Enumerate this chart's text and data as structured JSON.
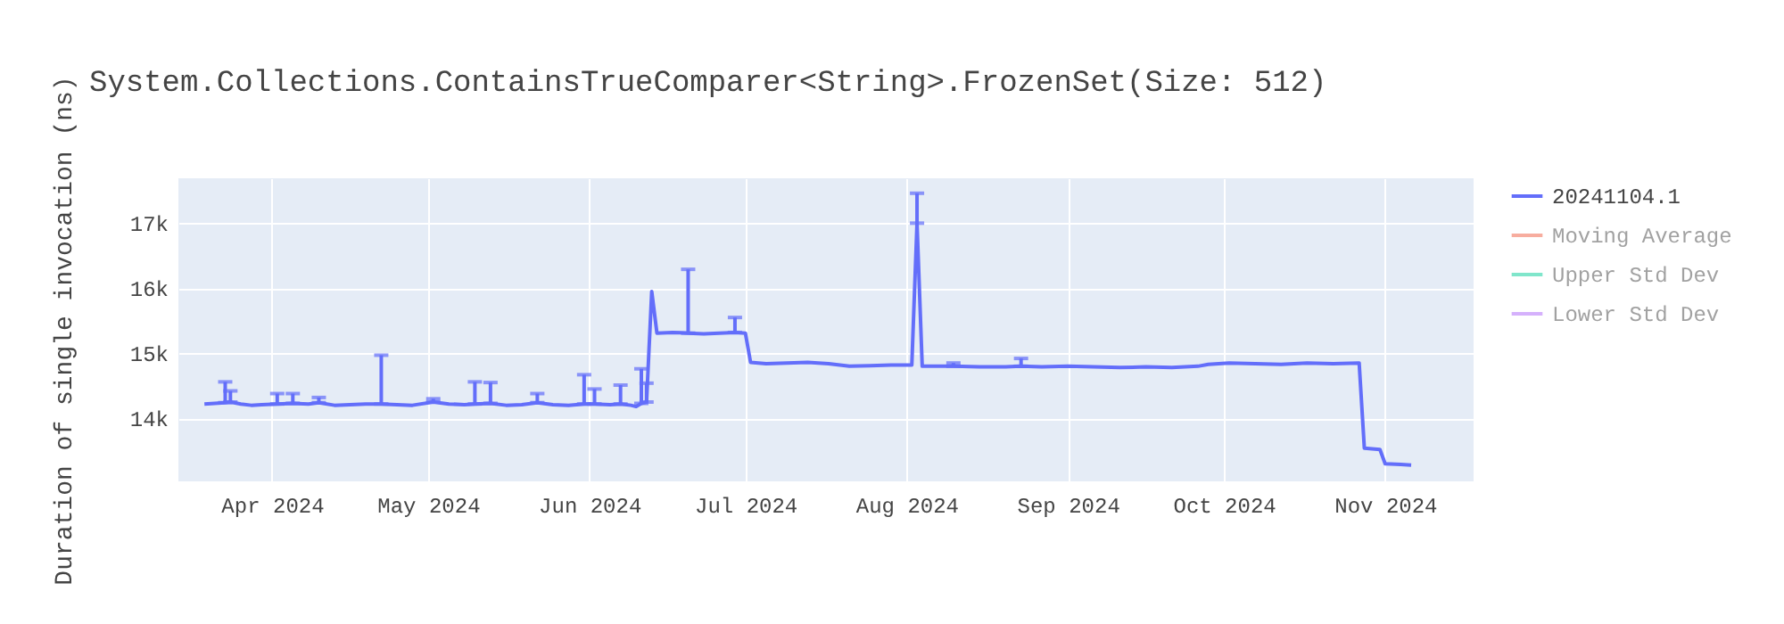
{
  "chart_data": {
    "type": "line",
    "title": "System.Collections.ContainsTrueComparer<String>.FrozenSet(Size: 512)",
    "ylabel": "Duration of single invocation (ns)",
    "x": [
      "2024-03-19",
      "2024-03-21",
      "2024-03-23",
      "2024-03-24",
      "2024-03-26",
      "2024-03-28",
      "2024-03-30",
      "2024-04-02",
      "2024-04-05",
      "2024-04-08",
      "2024-04-10",
      "2024-04-13",
      "2024-04-16",
      "2024-04-19",
      "2024-04-22",
      "2024-04-25",
      "2024-04-28",
      "2024-05-02",
      "2024-05-05",
      "2024-05-08",
      "2024-05-10",
      "2024-05-13",
      "2024-05-16",
      "2024-05-19",
      "2024-05-22",
      "2024-05-25",
      "2024-05-28",
      "2024-05-31",
      "2024-06-02",
      "2024-06-05",
      "2024-06-07",
      "2024-06-09",
      "2024-06-10",
      "2024-06-11",
      "2024-06-12",
      "2024-06-13",
      "2024-06-14",
      "2024-06-17",
      "2024-06-20",
      "2024-06-23",
      "2024-06-26",
      "2024-06-29",
      "2024-07-01",
      "2024-07-02",
      "2024-07-05",
      "2024-07-09",
      "2024-07-13",
      "2024-07-17",
      "2024-07-21",
      "2024-07-25",
      "2024-07-29",
      "2024-08-02",
      "2024-08-03",
      "2024-08-04",
      "2024-08-10",
      "2024-08-15",
      "2024-08-20",
      "2024-08-23",
      "2024-08-27",
      "2024-09-01",
      "2024-09-06",
      "2024-09-11",
      "2024-09-16",
      "2024-09-21",
      "2024-09-26",
      "2024-09-28",
      "2024-10-02",
      "2024-10-07",
      "2024-10-12",
      "2024-10-17",
      "2024-10-22",
      "2024-10-27",
      "2024-10-28",
      "2024-10-31",
      "2024-11-01",
      "2024-11-04",
      "2024-11-06"
    ],
    "series": [
      {
        "name": "20241104.1",
        "color": "#636efa",
        "values": [
          14220,
          14230,
          14240,
          14250,
          14220,
          14200,
          14210,
          14220,
          14230,
          14220,
          14240,
          14200,
          14210,
          14220,
          14220,
          14210,
          14200,
          14250,
          14220,
          14210,
          14220,
          14230,
          14200,
          14210,
          14240,
          14210,
          14200,
          14220,
          14220,
          14210,
          14220,
          14200,
          14180,
          14230,
          14250,
          15950,
          15310,
          15320,
          15310,
          15300,
          15310,
          15320,
          15310,
          14860,
          14840,
          14850,
          14860,
          14840,
          14800,
          14810,
          14820,
          14820,
          17000,
          14800,
          14800,
          14790,
          14790,
          14800,
          14790,
          14800,
          14790,
          14780,
          14790,
          14780,
          14800,
          14830,
          14850,
          14840,
          14830,
          14850,
          14840,
          14850,
          13540,
          13520,
          13300,
          13290,
          13280
        ],
        "errors": [
          null,
          null,
          [
            14240,
            14560
          ],
          [
            14250,
            14420
          ],
          null,
          null,
          null,
          [
            14220,
            14380
          ],
          [
            14230,
            14380
          ],
          null,
          [
            14240,
            14320
          ],
          null,
          null,
          null,
          [
            14220,
            14970
          ],
          null,
          null,
          [
            14250,
            14300
          ],
          null,
          null,
          [
            14220,
            14560
          ],
          [
            14230,
            14550
          ],
          null,
          null,
          [
            14240,
            14380
          ],
          null,
          null,
          [
            14220,
            14670
          ],
          [
            14220,
            14450
          ],
          null,
          [
            14220,
            14510
          ],
          null,
          null,
          [
            14230,
            14760
          ],
          [
            14250,
            14540
          ],
          null,
          null,
          null,
          [
            15310,
            16290
          ],
          null,
          null,
          [
            15320,
            15550
          ],
          null,
          null,
          null,
          null,
          null,
          null,
          null,
          null,
          null,
          null,
          [
            17000,
            17460
          ],
          null,
          [
            14800,
            14850
          ],
          null,
          null,
          [
            14800,
            14920
          ],
          null,
          null,
          null,
          null,
          null,
          null,
          null,
          null,
          null,
          null,
          null,
          null,
          null,
          null,
          null,
          null,
          null,
          null,
          null
        ]
      },
      {
        "name": "Moving Average",
        "color": "#f7ad9f",
        "values": [
          null,
          null,
          null,
          null,
          null,
          null,
          null,
          null,
          null,
          null,
          null,
          null,
          null,
          null,
          null,
          null,
          null,
          null,
          null,
          null,
          null,
          null,
          null,
          null,
          null,
          null,
          null,
          null,
          null,
          null,
          null,
          null,
          null,
          null,
          null,
          null,
          null,
          null,
          null,
          null,
          null,
          null,
          null,
          null,
          null,
          null,
          null,
          null,
          null,
          null,
          null,
          null,
          null,
          null,
          null,
          null,
          null,
          null,
          null,
          null,
          null,
          null,
          null,
          null,
          null,
          null,
          null,
          null,
          null,
          null,
          null,
          null,
          null,
          null,
          null,
          null,
          null
        ]
      },
      {
        "name": "Upper Std Dev",
        "color": "#80e6cb",
        "values": [
          null,
          null,
          null,
          null,
          null,
          null,
          null,
          null,
          null,
          null,
          null,
          null,
          null,
          null,
          null,
          null,
          null,
          null,
          null,
          null,
          null,
          null,
          null,
          null,
          null,
          null,
          null,
          null,
          null,
          null,
          null,
          null,
          null,
          null,
          null,
          null,
          null,
          null,
          null,
          null,
          null,
          null,
          null,
          null,
          null,
          null,
          null,
          null,
          null,
          null,
          null,
          null,
          null,
          null,
          null,
          null,
          null,
          null,
          null,
          null,
          null,
          null,
          null,
          null,
          null,
          null,
          null,
          null,
          null,
          null,
          null,
          null,
          null,
          null,
          null,
          null,
          null
        ]
      },
      {
        "name": "Lower Std Dev",
        "color": "#d5b1fc",
        "values": [
          null,
          null,
          null,
          null,
          null,
          null,
          null,
          null,
          null,
          null,
          null,
          null,
          null,
          null,
          null,
          null,
          null,
          null,
          null,
          null,
          null,
          null,
          null,
          null,
          null,
          null,
          null,
          null,
          null,
          null,
          null,
          null,
          null,
          null,
          null,
          null,
          null,
          null,
          null,
          null,
          null,
          null,
          null,
          null,
          null,
          null,
          null,
          null,
          null,
          null,
          null,
          null,
          null,
          null,
          null,
          null,
          null,
          null,
          null,
          null,
          null,
          null,
          null,
          null,
          null,
          null,
          null,
          null,
          null,
          null,
          null,
          null,
          null,
          null,
          null,
          null,
          null
        ]
      }
    ],
    "xlim": [
      "2024-03-14",
      "2024-11-18"
    ],
    "xticks": [
      {
        "value": "2024-04-01",
        "label": "Apr 2024"
      },
      {
        "value": "2024-05-01",
        "label": "May 2024"
      },
      {
        "value": "2024-06-01",
        "label": "Jun 2024"
      },
      {
        "value": "2024-07-01",
        "label": "Jul 2024"
      },
      {
        "value": "2024-08-01",
        "label": "Aug 2024"
      },
      {
        "value": "2024-09-01",
        "label": "Sep 2024"
      },
      {
        "value": "2024-10-01",
        "label": "Oct 2024"
      },
      {
        "value": "2024-11-01",
        "label": "Nov 2024"
      }
    ],
    "ylim": [
      13030,
      17690
    ],
    "yticks": [
      {
        "value": 14000,
        "label": "14k"
      },
      {
        "value": 15000,
        "label": "15k"
      },
      {
        "value": 16000,
        "label": "16k"
      },
      {
        "value": 17000,
        "label": "17k"
      }
    ],
    "grid": true,
    "legend": "top right"
  }
}
